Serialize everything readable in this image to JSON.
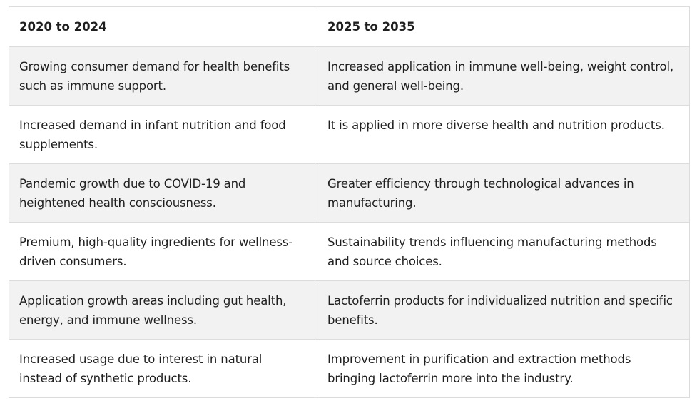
{
  "table": {
    "headers": [
      "2020 to 2024",
      "2025 to 2035"
    ],
    "rows": [
      [
        "Growing consumer demand for health benefits such as immune support.",
        "Increased application in immune well-being, weight control, and general well-being."
      ],
      [
        "Increased demand in infant nutrition and food supplements.",
        "It is applied in more diverse health and nutrition products."
      ],
      [
        "Pandemic growth due to COVID-19 and heightened health consciousness.",
        "Greater efficiency through technological advances in manufacturing."
      ],
      [
        "Premium, high-quality ingredients for wellness-driven consumers.",
        "Sustainability trends influencing manufacturing methods and source choices."
      ],
      [
        "Application growth areas including gut health, energy, and immune wellness.",
        "Lactoferrin products for individualized nutrition and specific benefits."
      ],
      [
        "Increased usage due to interest in natural instead of synthetic products.",
        "Improvement in purification and extraction methods bringing lactoferrin more into the industry."
      ]
    ]
  }
}
